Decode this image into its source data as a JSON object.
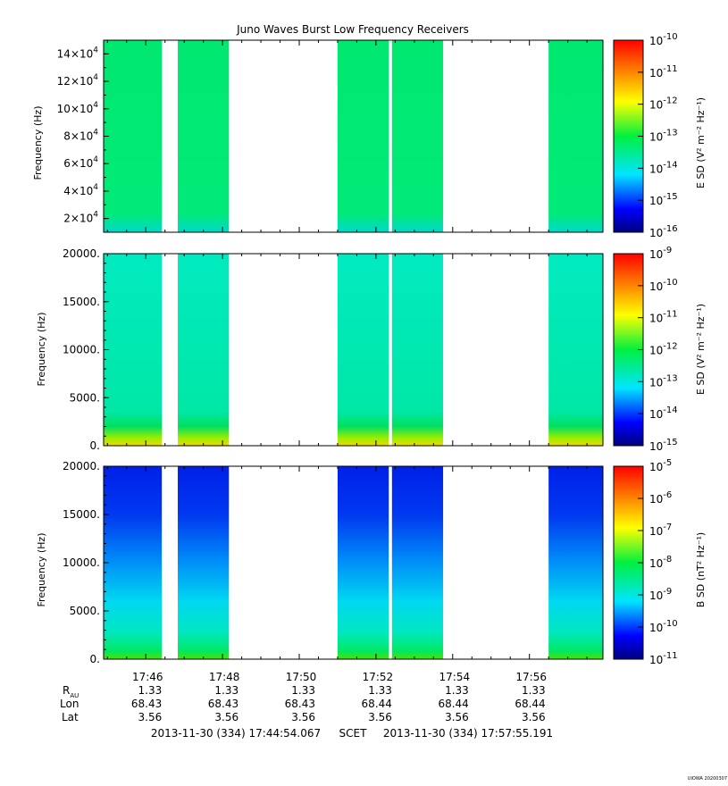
{
  "title": "Juno Waves Burst Low Frequency Receivers",
  "footer": {
    "start": "2013-11-30 (334) 17:44:54.067",
    "frame": "SCET",
    "end": "2013-11-30 (334) 17:57:55.191",
    "credit": "UIOWA 20200307"
  },
  "ephemeris": {
    "labels": [
      "R",
      "Lon",
      "Lat"
    ],
    "r_subscript": "AU",
    "times": [
      "17:46",
      "17:48",
      "17:50",
      "17:52",
      "17:54",
      "17:56"
    ],
    "r": [
      "1.33",
      "1.33",
      "1.33",
      "1.33",
      "1.33",
      "1.33"
    ],
    "lon": [
      "68.43",
      "68.43",
      "68.43",
      "68.44",
      "68.44",
      "68.44"
    ],
    "lat": [
      "3.56",
      "3.56",
      "3.56",
      "3.56",
      "3.56",
      "3.56"
    ]
  },
  "chart_data": [
    {
      "type": "heatmap",
      "ylabel": "Frequency (Hz)",
      "ylim": [
        10000,
        150000
      ],
      "yticks_mantissa": [
        "2",
        "4",
        "6",
        "8",
        "10",
        "12",
        "14"
      ],
      "ytick_exponent": "4",
      "colorbar_label": "E SD (V² m⁻² Hz⁻¹)",
      "colorbar_exponents": [
        "-10",
        "-11",
        "-12",
        "-13",
        "-14",
        "-15",
        "-16"
      ],
      "data_segments": [
        [
          "17:44:54",
          "17:46:25"
        ],
        [
          "17:46:50",
          "17:48:10"
        ],
        [
          "17:51:00",
          "17:52:20"
        ],
        [
          "17:52:25",
          "17:53:45"
        ],
        [
          "17:56:30",
          "17:57:55"
        ]
      ],
      "dominant_level": "1e-13 to 1e-14",
      "colormap": [
        "#00008b",
        "#0000ff",
        "#00ffff",
        "#00ff00",
        "#ffff00",
        "#ff8000",
        "#ff0000"
      ]
    },
    {
      "type": "heatmap",
      "ylabel": "Frequency (Hz)",
      "ylim": [
        0,
        20000
      ],
      "yticks": [
        "0.",
        "5000.",
        "10000.",
        "15000.",
        "20000."
      ],
      "colorbar_label": "E SD (V² m⁻² Hz⁻¹)",
      "colorbar_exponents": [
        "-9",
        "-10",
        "-11",
        "-12",
        "-13",
        "-14",
        "-15"
      ],
      "data_segments": [
        [
          "17:44:54",
          "17:46:25"
        ],
        [
          "17:46:50",
          "17:48:10"
        ],
        [
          "17:51:00",
          "17:52:20"
        ],
        [
          "17:52:25",
          "17:53:45"
        ],
        [
          "17:56:30",
          "17:57:55"
        ]
      ],
      "dominant_level": "1e-13",
      "colormap": [
        "#00008b",
        "#0000ff",
        "#00ffff",
        "#00ff00",
        "#ffff00",
        "#ff8000",
        "#ff0000"
      ]
    },
    {
      "type": "heatmap",
      "ylabel": "Frequency (Hz)",
      "ylim": [
        0,
        20000
      ],
      "yticks": [
        "0.",
        "5000.",
        "10000.",
        "15000.",
        "20000."
      ],
      "colorbar_label": "B SD (nT² Hz⁻¹)",
      "colorbar_exponents": [
        "-5",
        "-6",
        "-7",
        "-8",
        "-9",
        "-10",
        "-11"
      ],
      "data_segments": [
        [
          "17:44:54",
          "17:46:25"
        ],
        [
          "17:46:50",
          "17:48:10"
        ],
        [
          "17:51:00",
          "17:52:20"
        ],
        [
          "17:52:25",
          "17:53:45"
        ],
        [
          "17:56:30",
          "17:57:55"
        ]
      ],
      "dominant_level": "1e-10 (high f) to 1e-8 (low f)",
      "colormap": [
        "#00008b",
        "#0000ff",
        "#00ffff",
        "#00ff00",
        "#ffff00",
        "#ff8000",
        "#ff0000"
      ]
    }
  ]
}
